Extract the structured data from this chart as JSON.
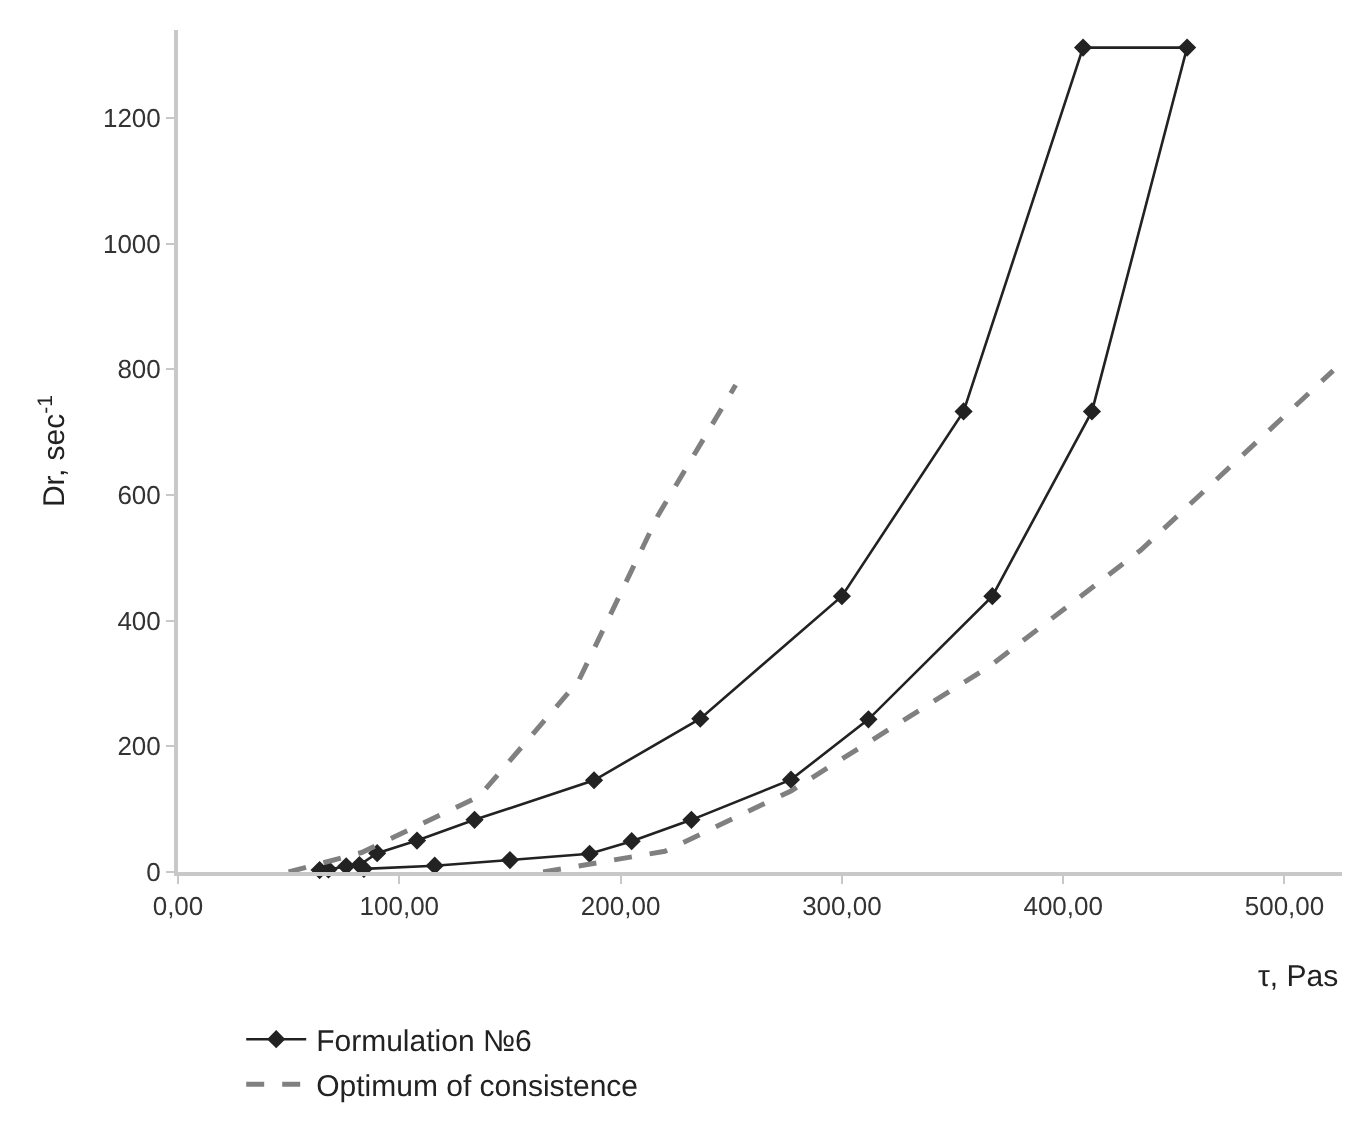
{
  "chart_data": {
    "type": "line",
    "xlabel": "τ, Pas",
    "ylabel": "Dr, sec$^{-1}$",
    "xlim": [
      0,
      526
    ],
    "ylim": [
      0,
      1340
    ],
    "xticks": [
      {
        "value": 0,
        "label": "0,00"
      },
      {
        "value": 100,
        "label": "100,00"
      },
      {
        "value": 200,
        "label": "200,00"
      },
      {
        "value": 300,
        "label": "300,00"
      },
      {
        "value": 400,
        "label": "400,00"
      },
      {
        "value": 500,
        "label": "500,00"
      }
    ],
    "yticks": [
      0,
      200,
      400,
      600,
      800,
      1000,
      1200
    ],
    "legend": "bottom left",
    "series": [
      {
        "name": "Formulation №6",
        "color": "#222222",
        "marker": "diamond",
        "line_style": "solid",
        "x": [
          84,
          116,
          150,
          186,
          205,
          232,
          277,
          312,
          368,
          413,
          456,
          409,
          355,
          300,
          236,
          188,
          134,
          108,
          90,
          82,
          76,
          68,
          64
        ],
        "values": [
          5,
          10,
          19,
          29,
          49,
          83,
          147,
          243,
          439,
          733,
          1312,
          1312,
          733,
          439,
          244,
          146,
          83,
          50,
          30,
          11,
          9,
          4,
          3
        ]
      },
      {
        "name": "Optimum of consistence",
        "color": "#808080",
        "marker": "none",
        "line_style": "dashed",
        "x": [
          50,
          83,
          136,
          181,
          217,
          252,
          null,
          165,
          220,
          277,
          367,
          435,
          522
        ],
        "values": [
          0,
          31,
          120,
          304,
          568,
          775,
          null,
          0,
          33,
          129,
          328,
          512,
          798
        ]
      }
    ]
  }
}
